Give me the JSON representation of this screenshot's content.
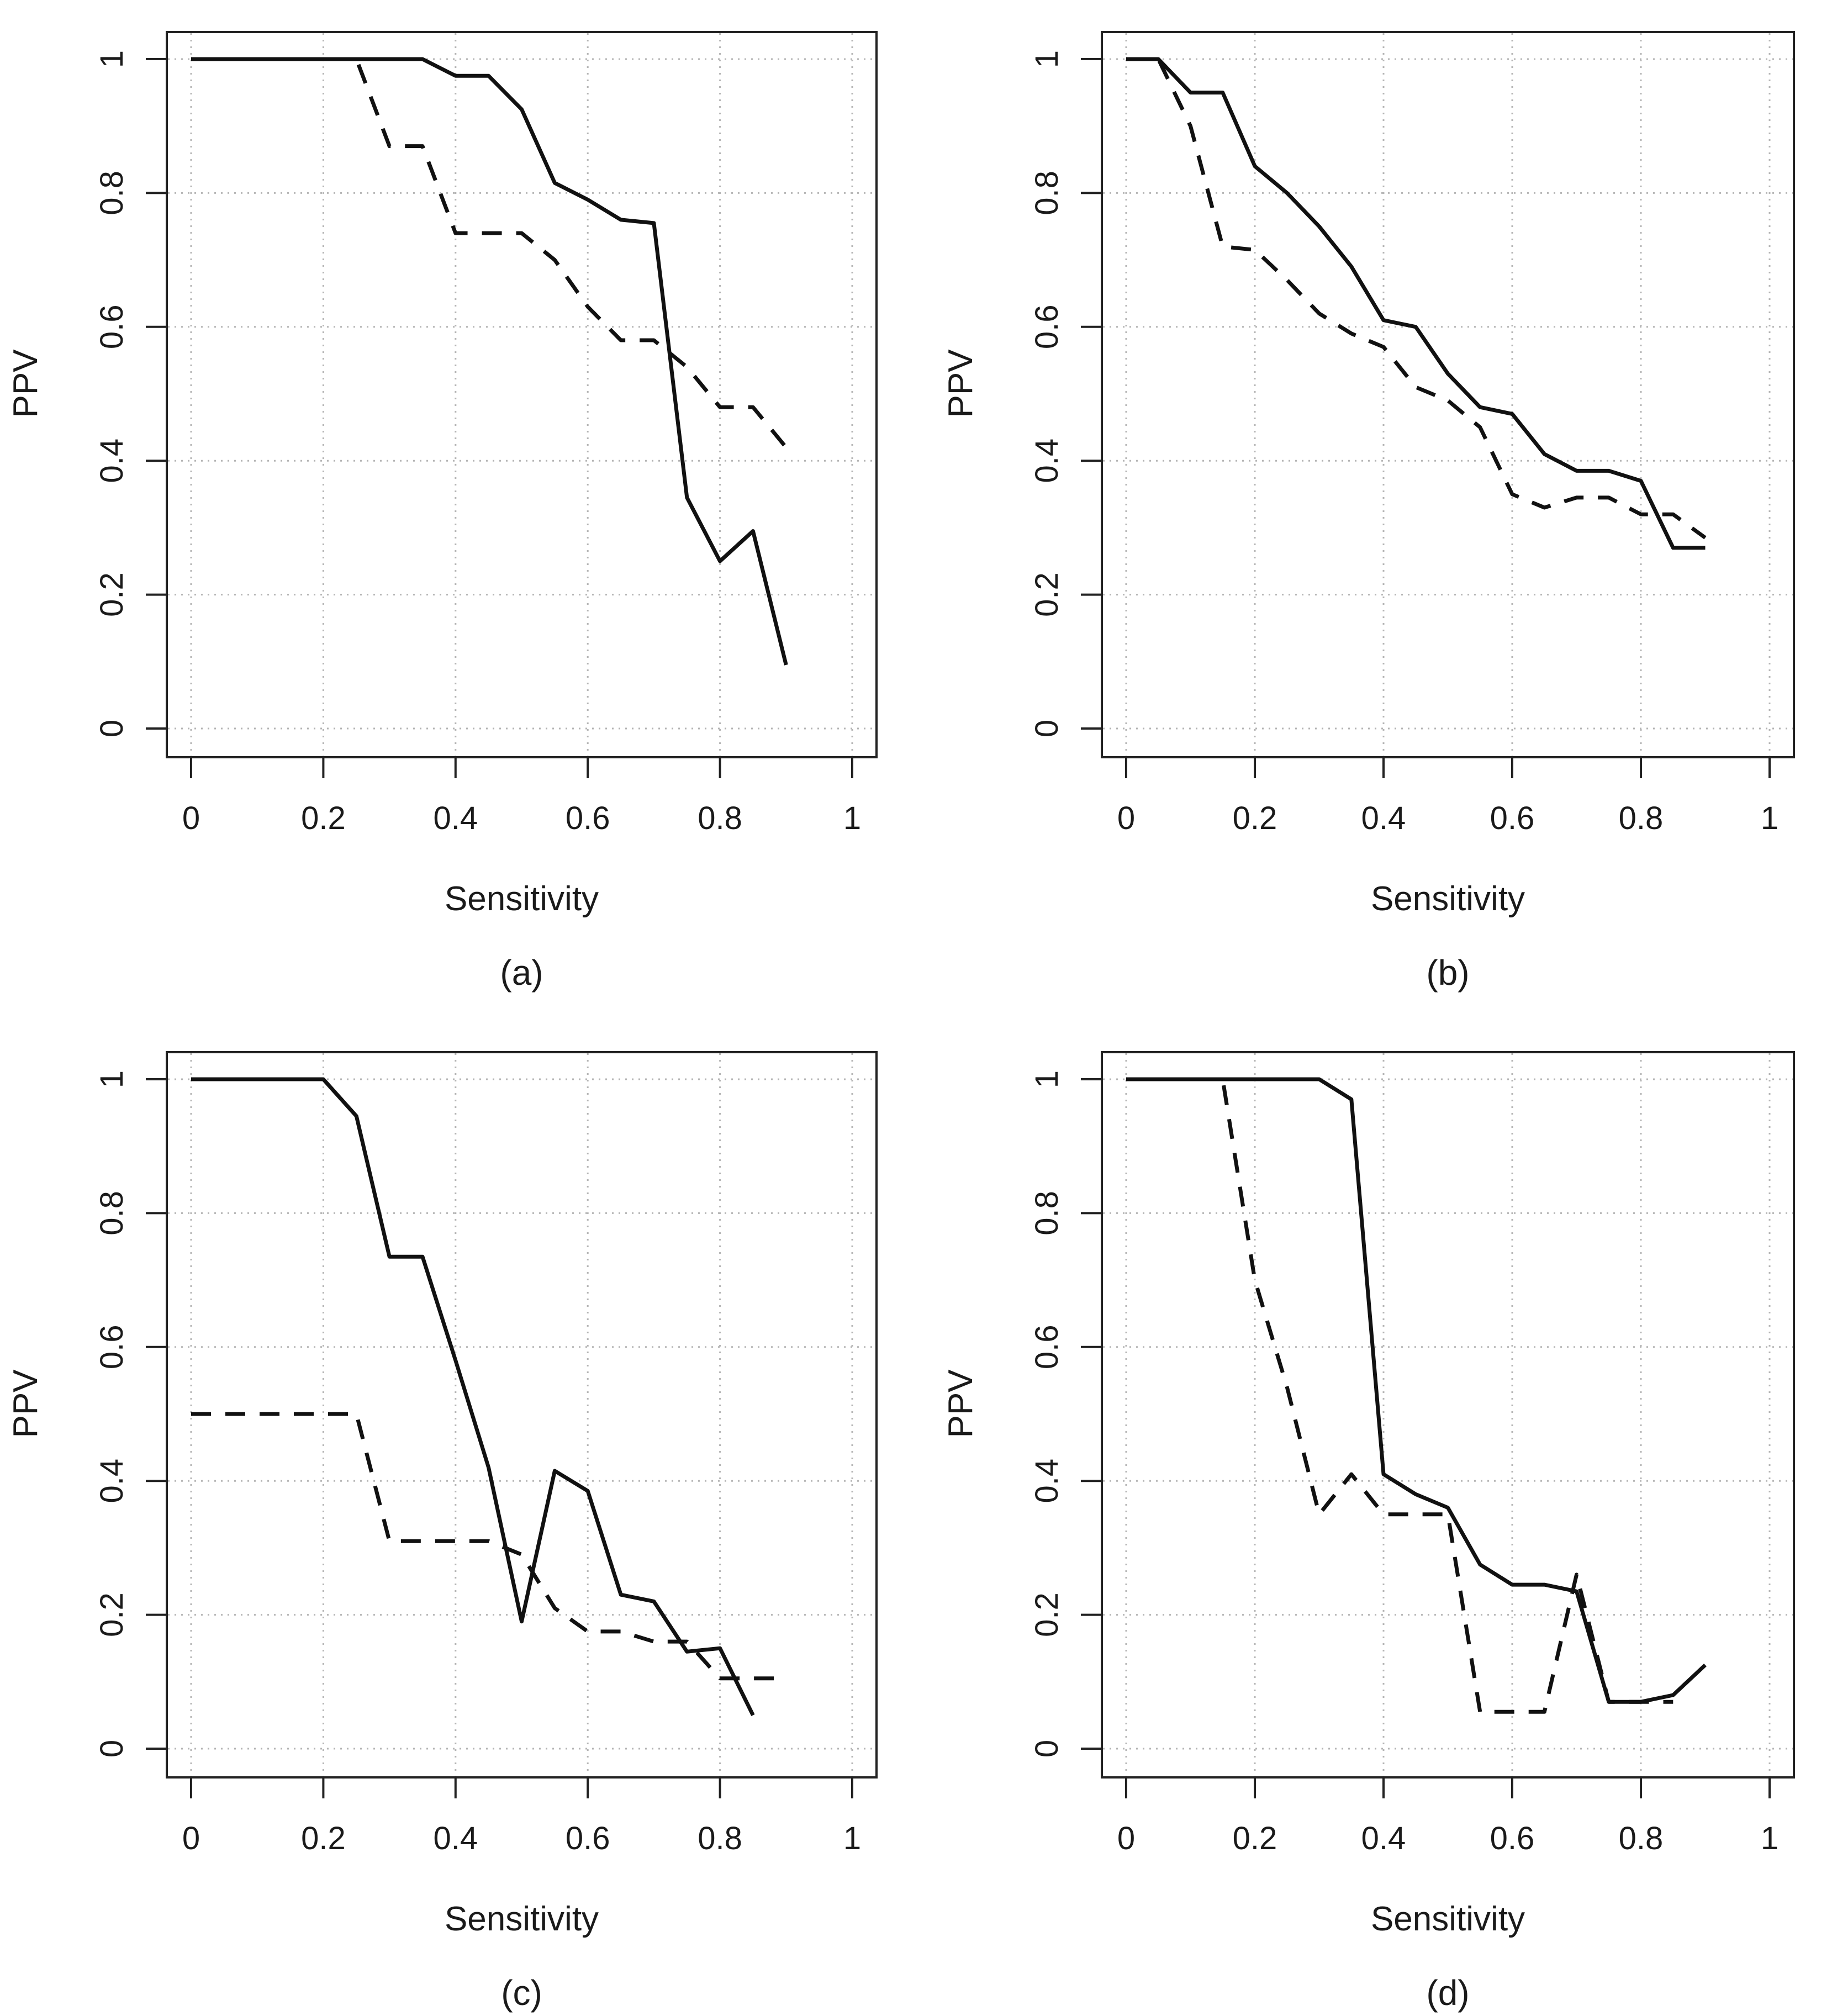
{
  "chart_data": [
    {
      "type": "line",
      "title": "",
      "caption": "(a)",
      "xlabel": "Sensitivity",
      "ylabel": "PPV",
      "xlim": [
        0,
        1
      ],
      "ylim": [
        0,
        1
      ],
      "xticks": [
        "0",
        "0.2",
        "0.4",
        "0.6",
        "0.8",
        "1"
      ],
      "yticks": [
        "0",
        "0.2",
        "0.4",
        "0.6",
        "0.8",
        "1"
      ],
      "grid": true,
      "series": [
        {
          "style": "solid",
          "color": "#111111",
          "x": [
            0,
            0.05,
            0.1,
            0.15,
            0.2,
            0.25,
            0.3,
            0.35,
            0.4,
            0.45,
            0.5,
            0.55,
            0.6,
            0.65,
            0.7,
            0.75,
            0.8,
            0.85,
            0.9
          ],
          "y": [
            1,
            1,
            1,
            1,
            1,
            1,
            1,
            1,
            0.975,
            0.975,
            0.925,
            0.815,
            0.79,
            0.76,
            0.755,
            0.345,
            0.25,
            0.295,
            0.095
          ]
        },
        {
          "style": "dashed",
          "color": "#111111",
          "x": [
            0,
            0.05,
            0.1,
            0.15,
            0.2,
            0.25,
            0.3,
            0.35,
            0.4,
            0.45,
            0.5,
            0.55,
            0.6,
            0.65,
            0.7,
            0.75,
            0.8,
            0.85,
            0.9
          ],
          "y": [
            1,
            1,
            1,
            1,
            1,
            1,
            0.87,
            0.87,
            0.74,
            0.74,
            0.74,
            0.7,
            0.63,
            0.58,
            0.58,
            0.54,
            0.48,
            0.48,
            0.42
          ]
        }
      ]
    },
    {
      "type": "line",
      "title": "",
      "caption": "(b)",
      "xlabel": "Sensitivity",
      "ylabel": "PPV",
      "xlim": [
        0,
        1
      ],
      "ylim": [
        0,
        1
      ],
      "xticks": [
        "0",
        "0.2",
        "0.4",
        "0.6",
        "0.8",
        "1"
      ],
      "yticks": [
        "0",
        "0.2",
        "0.4",
        "0.6",
        "0.8",
        "1"
      ],
      "grid": true,
      "series": [
        {
          "style": "solid",
          "color": "#111111",
          "x": [
            0,
            0.05,
            0.1,
            0.15,
            0.2,
            0.25,
            0.3,
            0.35,
            0.4,
            0.45,
            0.5,
            0.55,
            0.6,
            0.65,
            0.7,
            0.75,
            0.8,
            0.85,
            0.9
          ],
          "y": [
            1,
            1,
            0.95,
            0.95,
            0.84,
            0.8,
            0.75,
            0.69,
            0.61,
            0.6,
            0.53,
            0.48,
            0.47,
            0.41,
            0.385,
            0.385,
            0.37,
            0.27,
            0.27
          ]
        },
        {
          "style": "dashed",
          "color": "#111111",
          "x": [
            0,
            0.05,
            0.1,
            0.15,
            0.2,
            0.25,
            0.3,
            0.35,
            0.4,
            0.45,
            0.5,
            0.55,
            0.6,
            0.65,
            0.7,
            0.75,
            0.8,
            0.85,
            0.9
          ],
          "y": [
            1,
            1,
            0.9,
            0.72,
            0.715,
            0.67,
            0.62,
            0.59,
            0.57,
            0.51,
            0.49,
            0.45,
            0.35,
            0.33,
            0.345,
            0.345,
            0.32,
            0.32,
            0.285
          ]
        }
      ]
    },
    {
      "type": "line",
      "title": "",
      "caption": "(c)",
      "xlabel": "Sensitivity",
      "ylabel": "PPV",
      "xlim": [
        0,
        1
      ],
      "ylim": [
        0,
        1
      ],
      "xticks": [
        "0",
        "0.2",
        "0.4",
        "0.6",
        "0.8",
        "1"
      ],
      "yticks": [
        "0",
        "0.2",
        "0.4",
        "0.6",
        "0.8",
        "1"
      ],
      "grid": true,
      "series": [
        {
          "style": "solid",
          "color": "#111111",
          "x": [
            0,
            0.05,
            0.1,
            0.15,
            0.2,
            0.25,
            0.3,
            0.35,
            0.4,
            0.45,
            0.5,
            0.55,
            0.6,
            0.65,
            0.7,
            0.75,
            0.8,
            0.85
          ],
          "y": [
            1,
            1,
            1,
            1,
            1,
            0.945,
            0.735,
            0.735,
            0.58,
            0.42,
            0.19,
            0.415,
            0.385,
            0.23,
            0.22,
            0.145,
            0.15,
            0.05
          ]
        },
        {
          "style": "dashed",
          "color": "#111111",
          "x": [
            0,
            0.05,
            0.1,
            0.15,
            0.2,
            0.25,
            0.3,
            0.35,
            0.4,
            0.45,
            0.5,
            0.55,
            0.6,
            0.65,
            0.7,
            0.75,
            0.8,
            0.85,
            0.9
          ],
          "y": [
            0.5,
            0.5,
            0.5,
            0.5,
            0.5,
            0.5,
            0.31,
            0.31,
            0.31,
            0.31,
            0.29,
            0.21,
            0.175,
            0.175,
            0.16,
            0.16,
            0.105,
            0.105,
            0.105
          ]
        }
      ]
    },
    {
      "type": "line",
      "title": "",
      "caption": "(d)",
      "xlabel": "Sensitivity",
      "ylabel": "PPV",
      "xlim": [
        0,
        1
      ],
      "ylim": [
        0,
        1
      ],
      "xticks": [
        "0",
        "0.2",
        "0.4",
        "0.6",
        "0.8",
        "1"
      ],
      "yticks": [
        "0",
        "0.2",
        "0.4",
        "0.6",
        "0.8",
        "1"
      ],
      "grid": true,
      "series": [
        {
          "style": "solid",
          "color": "#111111",
          "x": [
            0,
            0.05,
            0.1,
            0.15,
            0.2,
            0.25,
            0.3,
            0.35,
            0.4,
            0.45,
            0.5,
            0.55,
            0.6,
            0.65,
            0.7,
            0.75,
            0.8,
            0.85,
            0.9
          ],
          "y": [
            1,
            1,
            1,
            1,
            1,
            1,
            1,
            0.97,
            0.41,
            0.38,
            0.36,
            0.275,
            0.245,
            0.245,
            0.235,
            0.07,
            0.07,
            0.08,
            0.125
          ]
        },
        {
          "style": "dashed",
          "color": "#111111",
          "x": [
            0,
            0.05,
            0.1,
            0.15,
            0.2,
            0.25,
            0.3,
            0.35,
            0.4,
            0.45,
            0.5,
            0.55,
            0.6,
            0.65,
            0.7,
            0.75,
            0.8,
            0.85
          ],
          "y": [
            1,
            1,
            1,
            1,
            0.7,
            0.54,
            0.35,
            0.41,
            0.35,
            0.35,
            0.35,
            0.055,
            0.055,
            0.055,
            0.26,
            0.07,
            0.07,
            0.07
          ]
        }
      ]
    }
  ]
}
